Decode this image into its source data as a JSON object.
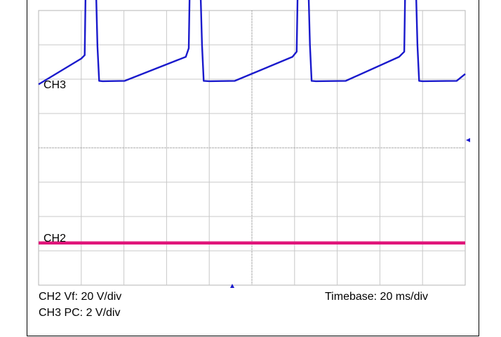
{
  "chart_data": {
    "type": "line",
    "title": "",
    "xlabel": "",
    "ylabel": "",
    "x_divisions": 10,
    "y_divisions": 8,
    "grid": true,
    "grid_color": "#c8c8c8",
    "series": [
      {
        "name": "CH3",
        "color": "#1a1acc",
        "points": [
          [
            0.0,
            5.85
          ],
          [
            1.0,
            6.6
          ],
          [
            1.08,
            6.7
          ],
          [
            1.1,
            8.4
          ],
          [
            1.35,
            8.4
          ],
          [
            1.38,
            6.95
          ],
          [
            1.42,
            5.95
          ],
          [
            1.5,
            5.94
          ],
          [
            2.02,
            5.95
          ],
          [
            3.45,
            6.65
          ],
          [
            3.52,
            6.9
          ],
          [
            3.54,
            8.4
          ],
          [
            3.8,
            8.4
          ],
          [
            3.83,
            7.0
          ],
          [
            3.87,
            5.95
          ],
          [
            4.0,
            5.94
          ],
          [
            4.6,
            5.95
          ],
          [
            5.95,
            6.65
          ],
          [
            6.05,
            6.8
          ],
          [
            6.07,
            8.4
          ],
          [
            6.33,
            8.4
          ],
          [
            6.36,
            7.0
          ],
          [
            6.4,
            5.95
          ],
          [
            6.5,
            5.94
          ],
          [
            7.2,
            5.95
          ],
          [
            8.45,
            6.65
          ],
          [
            8.57,
            6.8
          ],
          [
            8.59,
            8.4
          ],
          [
            8.85,
            8.4
          ],
          [
            8.88,
            7.0
          ],
          [
            8.92,
            5.95
          ],
          [
            9.0,
            5.94
          ],
          [
            9.8,
            5.95
          ],
          [
            10.0,
            6.15
          ]
        ]
      },
      {
        "name": "CH2",
        "color": "#e0157a",
        "points": [
          [
            0.0,
            1.23
          ],
          [
            10.0,
            1.23
          ]
        ]
      }
    ]
  },
  "labels": {
    "ch3": "CH3",
    "ch2": "CH2",
    "ch2_scale": "CH2 Vf: 20 V/div",
    "ch3_scale": "CH3 PC: 2 V/div",
    "timebase": "Timebase: 20 ms/div"
  },
  "colors": {
    "marker": "#1a1acc"
  }
}
